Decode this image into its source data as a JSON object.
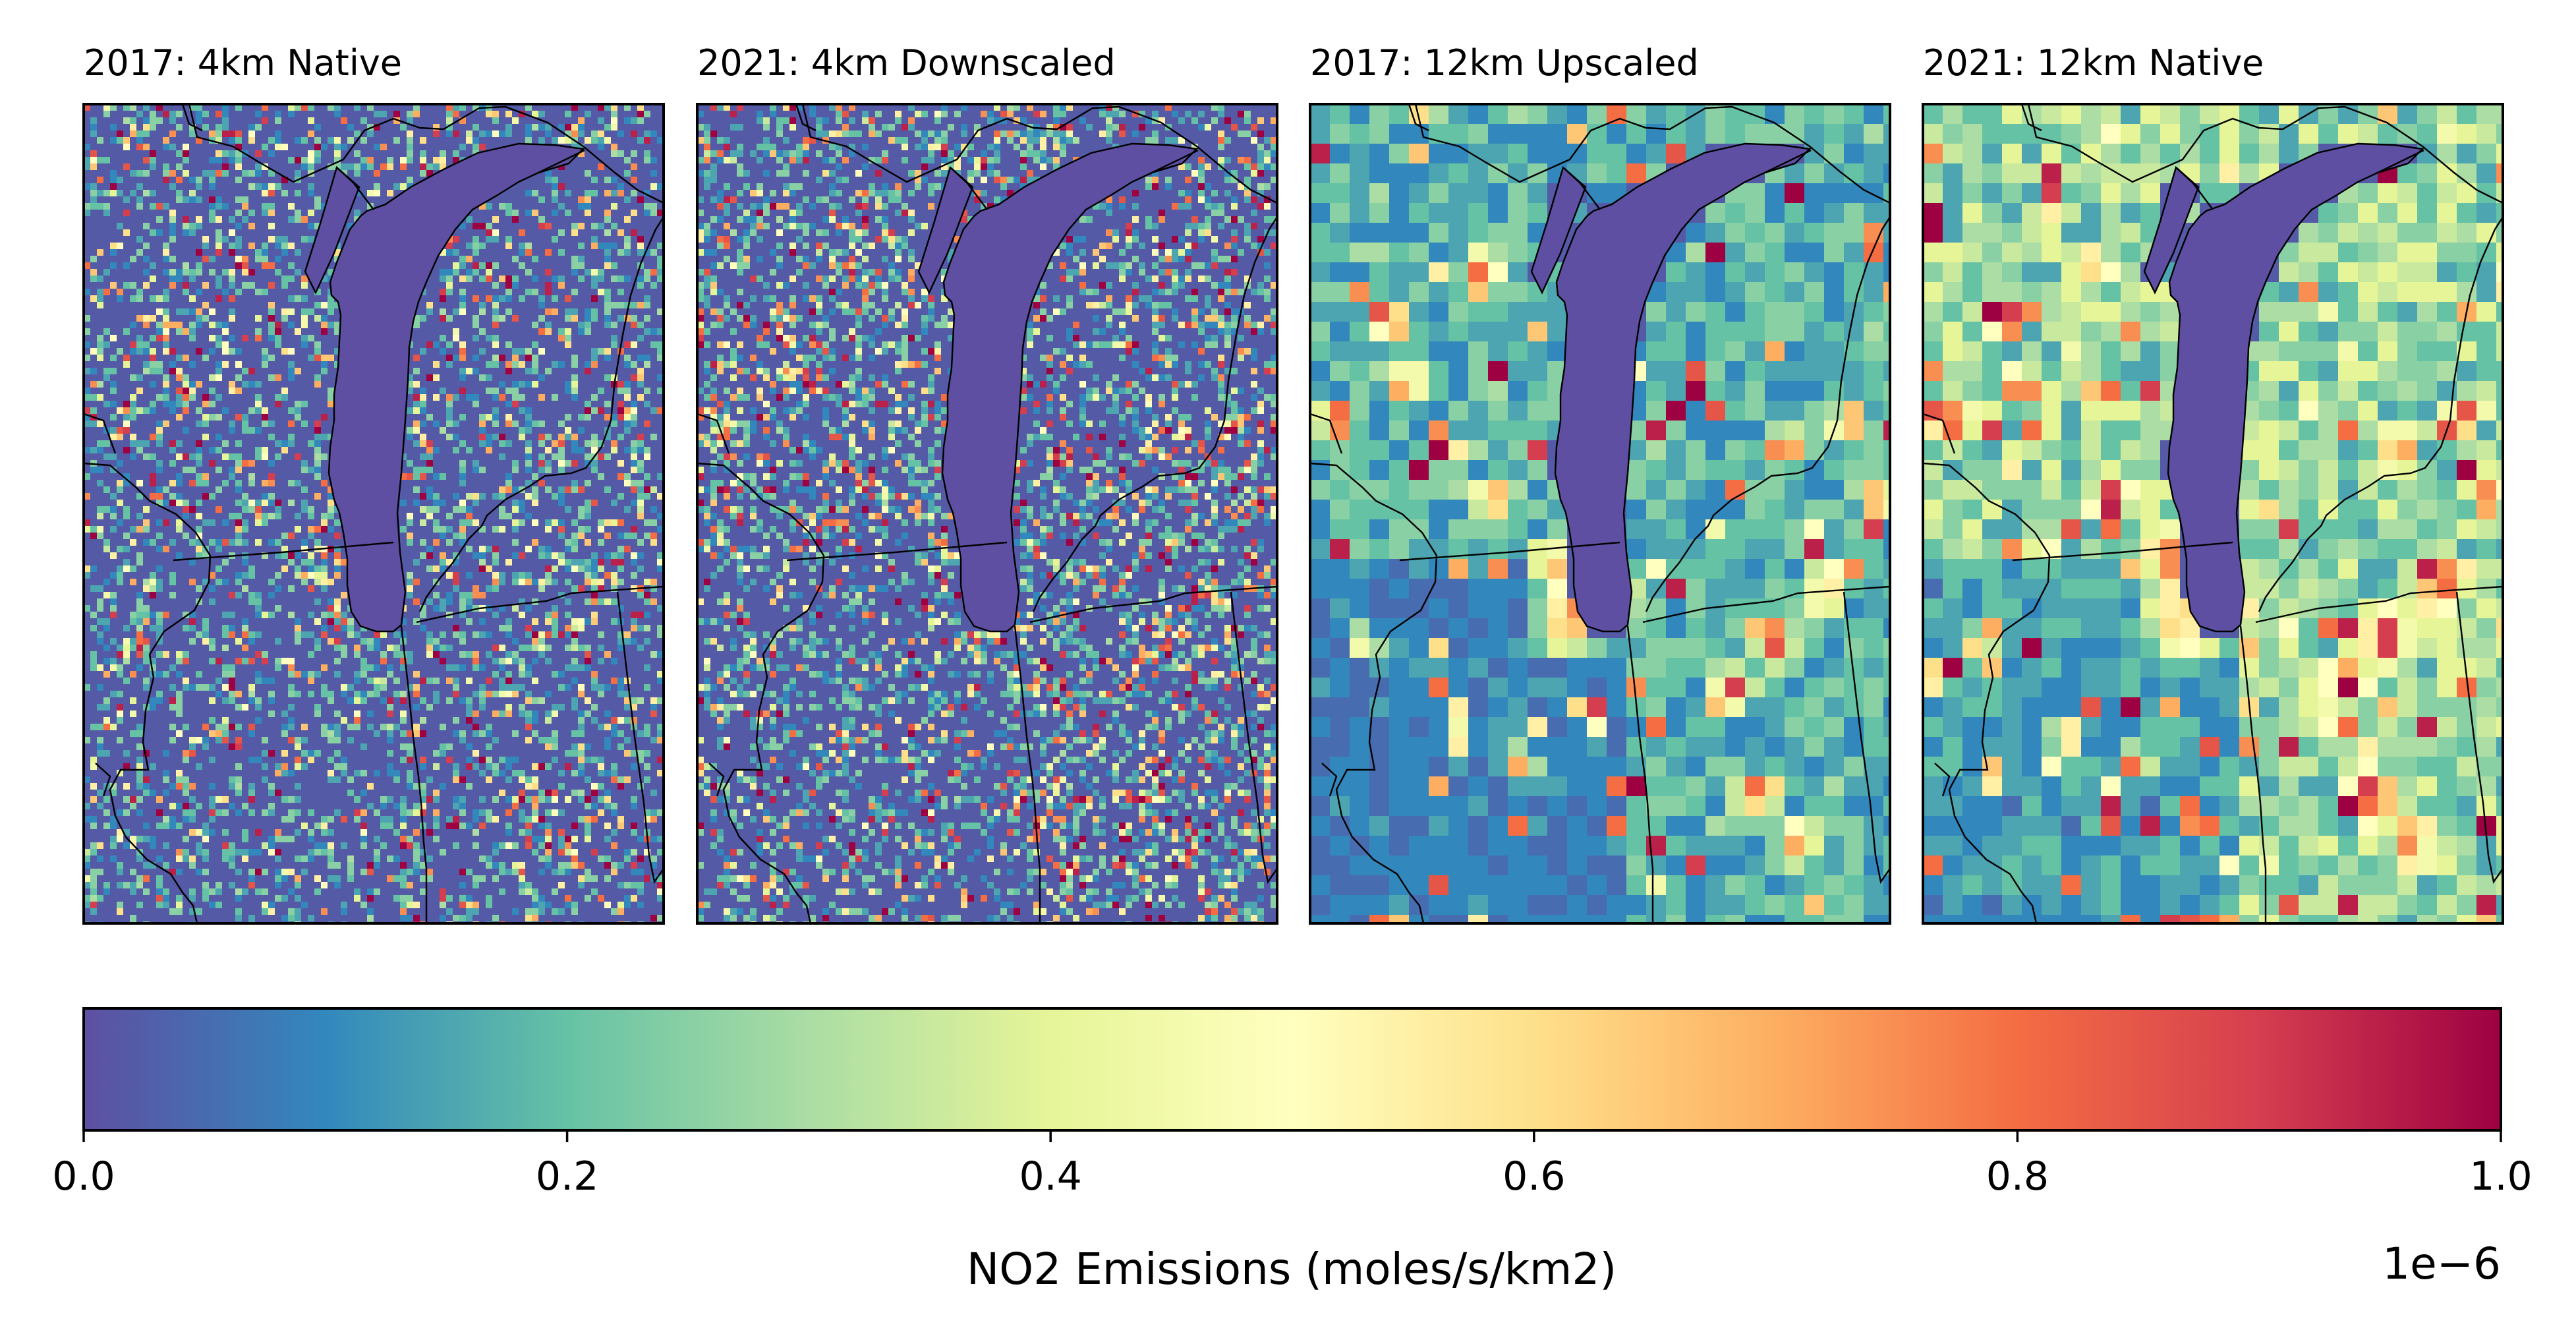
{
  "chart_data": {
    "type": "heatmap",
    "panels": [
      {
        "title": "2017: 4km Native",
        "resolution": "4km",
        "year": 2017
      },
      {
        "title": "2021: 4km Downscaled",
        "resolution": "4km",
        "year": 2021
      },
      {
        "title": "2017: 12km Upscaled",
        "resolution": "12km",
        "year": 2017
      },
      {
        "title": "2021: 12km Native",
        "resolution": "12km",
        "year": 2021
      }
    ],
    "colorbar": {
      "colormap": "Spectral_r",
      "colors": [
        "#5e4fa2",
        "#3288bd",
        "#66c2a5",
        "#abdda4",
        "#e6f598",
        "#ffffbf",
        "#fee08b",
        "#fdae61",
        "#f46d43",
        "#d53e4f",
        "#9e0142"
      ],
      "range": [
        0.0,
        1.0
      ],
      "ticks": [
        "0.0",
        "0.2",
        "0.4",
        "0.6",
        "0.8",
        "1.0"
      ],
      "label": "NO2 Emissions (moles/s/km2)",
      "offset_text": "1e−6"
    }
  }
}
